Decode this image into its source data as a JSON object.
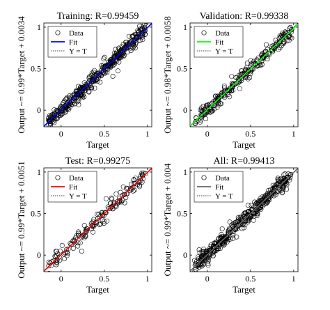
{
  "chart_data": [
    {
      "type": "scatter",
      "title": "Training: R=0.99459",
      "xlabel": "Target",
      "ylabel": "Output ~= 0.99*Target + 0.0034",
      "xlim": [
        -0.2,
        1.05
      ],
      "ylim": [
        -0.2,
        1.05
      ],
      "xticks": [
        0,
        0.5,
        1
      ],
      "yticks": [
        0,
        0.5,
        1
      ],
      "tick_labels": [
        "0",
        "0.5",
        "1"
      ],
      "fit": {
        "slope": 0.99,
        "intercept": 0.0034,
        "color": "#0000ff"
      },
      "scatter_spread": 0.045,
      "legend": [
        "Data",
        "Fit",
        "Y = T"
      ],
      "legend_position": "top-left"
    },
    {
      "type": "scatter",
      "title": "Validation: R=0.99338",
      "xlabel": "Target",
      "ylabel": "Output ~= 0.98*Target + 0.0058",
      "xlim": [
        -0.2,
        1.05
      ],
      "ylim": [
        -0.2,
        1.05
      ],
      "xticks": [
        0,
        0.5,
        1
      ],
      "yticks": [
        0,
        0.5,
        1
      ],
      "tick_labels": [
        "0",
        "0.5",
        "1"
      ],
      "fit": {
        "slope": 0.98,
        "intercept": 0.0058,
        "color": "#00ff00"
      },
      "scatter_spread": 0.045,
      "legend": [
        "Data",
        "Fit",
        "Y = T"
      ],
      "legend_position": "top-left"
    },
    {
      "type": "scatter",
      "title": "Test: R=0.99275",
      "xlabel": "Target",
      "ylabel": "Output ~= 0.99*Target + 0.0051",
      "xlim": [
        -0.2,
        1.05
      ],
      "ylim": [
        -0.2,
        1.05
      ],
      "xticks": [
        0,
        0.5,
        1
      ],
      "yticks": [
        0,
        0.5,
        1
      ],
      "tick_labels": [
        "0",
        "0.5",
        "1"
      ],
      "fit": {
        "slope": 0.99,
        "intercept": 0.0051,
        "color": "#ff0000"
      },
      "scatter_spread": 0.05,
      "legend": [
        "Data",
        "Fit",
        "Y = T"
      ],
      "legend_position": "top-left"
    },
    {
      "type": "scatter",
      "title": "All: R=0.99413",
      "xlabel": "Target",
      "ylabel": "Output ~= 0.99*Target + 0.004",
      "xlim": [
        -0.2,
        1.05
      ],
      "ylim": [
        -0.2,
        1.05
      ],
      "xticks": [
        0,
        0.5,
        1
      ],
      "yticks": [
        0,
        0.5,
        1
      ],
      "tick_labels": [
        "0",
        "0.5",
        "1"
      ],
      "fit": {
        "slope": 0.99,
        "intercept": 0.004,
        "color": "#666666"
      },
      "scatter_spread": 0.045,
      "legend": [
        "Data",
        "Fit",
        "Y = T"
      ],
      "legend_position": "top-left"
    }
  ]
}
